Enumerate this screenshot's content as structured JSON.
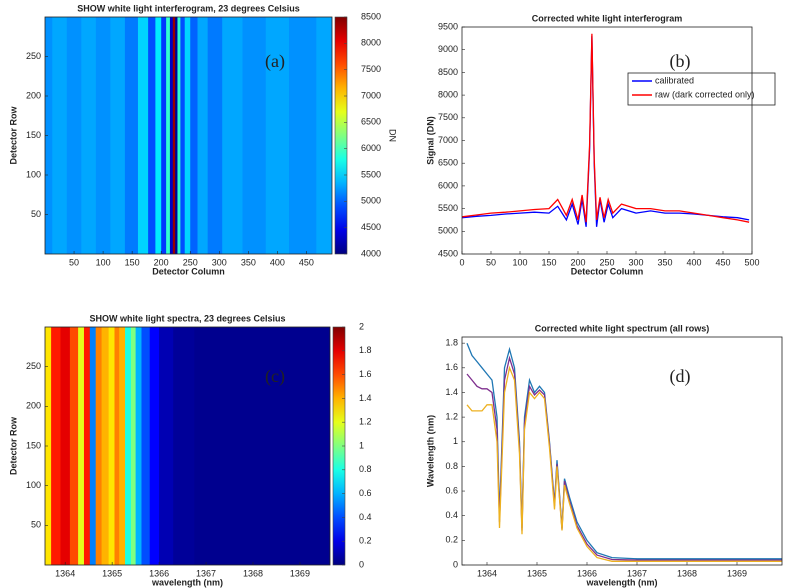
{
  "chart_data": [
    {
      "type": "heatmap",
      "title": "SHOW white light interferogram, 23 degrees Celsius",
      "xlabel": "Detector Column",
      "ylabel": "Detector Row",
      "annotation": "(a)",
      "x": [
        0,
        25,
        50,
        75,
        100,
        125,
        150,
        170,
        185,
        195,
        205,
        212,
        218,
        222,
        226,
        230,
        236,
        245,
        255,
        270,
        290,
        320,
        360,
        400,
        440,
        494
      ],
      "values": [
        5200,
        5300,
        5200,
        5300,
        5200,
        5300,
        5100,
        5500,
        4900,
        5600,
        4800,
        5900,
        4300,
        8400,
        4100,
        5900,
        4900,
        5500,
        5000,
        5300,
        5100,
        5300,
        5200,
        5300,
        5200,
        5300
      ],
      "xlim": [
        0,
        494
      ],
      "xticks": [
        50,
        100,
        150,
        200,
        250,
        300,
        350,
        400,
        450
      ],
      "ylim": [
        0,
        300
      ],
      "yticks": [
        50,
        100,
        150,
        200,
        250
      ],
      "clim": [
        4000,
        8500
      ],
      "cticks": [
        4000,
        4500,
        5000,
        5500,
        6000,
        6500,
        7000,
        7500,
        8000,
        8500
      ],
      "clabel": "DN",
      "colormap": "jet"
    },
    {
      "type": "line",
      "title": "Corrected white light interferogram",
      "xlabel": "Detector Column",
      "ylabel": "Signal (DN)",
      "annotation": "(b)",
      "x": [
        0,
        25,
        50,
        75,
        100,
        125,
        150,
        165,
        180,
        190,
        200,
        207,
        214,
        220,
        224,
        228,
        232,
        238,
        245,
        252,
        260,
        275,
        300,
        325,
        350,
        375,
        400,
        425,
        450,
        475,
        495
      ],
      "series": [
        {
          "name": "calibrated",
          "color": "#0000ff",
          "values": [
            5300,
            5330,
            5350,
            5380,
            5400,
            5420,
            5400,
            5550,
            5250,
            5600,
            5150,
            5700,
            5100,
            6800,
            9300,
            6500,
            5100,
            5700,
            5200,
            5600,
            5300,
            5500,
            5400,
            5450,
            5400,
            5400,
            5380,
            5350,
            5320,
            5300,
            5250
          ]
        },
        {
          "name": "raw (dark corrected only)",
          "color": "#ff0000",
          "values": [
            5320,
            5360,
            5400,
            5420,
            5450,
            5480,
            5500,
            5700,
            5350,
            5700,
            5250,
            5800,
            5200,
            6900,
            9350,
            6600,
            5250,
            5750,
            5300,
            5700,
            5400,
            5600,
            5500,
            5500,
            5450,
            5450,
            5400,
            5350,
            5300,
            5250,
            5200
          ]
        }
      ],
      "xlim": [
        0,
        500
      ],
      "xticks": [
        0,
        50,
        100,
        150,
        200,
        250,
        300,
        350,
        400,
        450,
        500
      ],
      "ylim": [
        4500,
        9500
      ],
      "yticks": [
        4500,
        5000,
        5500,
        6000,
        6500,
        7000,
        7500,
        8000,
        8500,
        9000,
        9500
      ],
      "legend": "upper right"
    },
    {
      "type": "heatmap",
      "title": "SHOW white light spectra, 23 degrees Celsius",
      "xlabel": "wavelength (nm)",
      "ylabel": "Detector Row",
      "annotation": "(c)",
      "x": [
        1363.6,
        1363.8,
        1364.0,
        1364.2,
        1364.35,
        1364.45,
        1364.6,
        1364.7,
        1364.85,
        1365.0,
        1365.1,
        1365.2,
        1365.35,
        1365.45,
        1365.55,
        1365.7,
        1365.9,
        1366.1,
        1366.5,
        1367,
        1368,
        1369.6
      ],
      "values": [
        1.3,
        1.7,
        1.8,
        1.6,
        1.2,
        1.7,
        0.5,
        1.5,
        1.4,
        1.3,
        1.5,
        1.4,
        0.8,
        1.0,
        0.6,
        0.4,
        0.25,
        0.1,
        0.05,
        0.03,
        0.03,
        0.03
      ],
      "xlim": [
        1363.57,
        1369.64
      ],
      "xticks": [
        1364,
        1365,
        1366,
        1367,
        1368,
        1369
      ],
      "ylim": [
        0,
        300
      ],
      "yticks": [
        50,
        100,
        150,
        200,
        250
      ],
      "clim": [
        0,
        2
      ],
      "cticks": [
        0,
        0.2,
        0.4,
        0.6,
        0.8,
        1,
        1.2,
        1.4,
        1.6,
        1.8,
        2
      ],
      "colormap": "jet"
    },
    {
      "type": "line",
      "title": "Corrected white light spectrum (all rows)",
      "xlabel": "wavelength (nm)",
      "ylabel": "Wavelength (nm)",
      "annotation": "(d)",
      "x": [
        1363.6,
        1363.7,
        1363.8,
        1363.9,
        1364.0,
        1364.1,
        1364.2,
        1364.25,
        1364.35,
        1364.45,
        1364.55,
        1364.65,
        1364.7,
        1364.75,
        1364.85,
        1364.95,
        1365.05,
        1365.15,
        1365.25,
        1365.35,
        1365.4,
        1365.5,
        1365.55,
        1365.65,
        1365.8,
        1366.0,
        1366.2,
        1366.5,
        1367,
        1368,
        1369,
        1369.9
      ],
      "series": [
        {
          "color": "#1f77b4",
          "values": [
            1.8,
            1.7,
            1.65,
            1.6,
            1.55,
            1.5,
            1.2,
            0.4,
            1.6,
            1.75,
            1.6,
            1.0,
            0.3,
            1.2,
            1.5,
            1.4,
            1.45,
            1.4,
            1.0,
            0.5,
            0.85,
            0.3,
            0.7,
            0.55,
            0.35,
            0.2,
            0.1,
            0.06,
            0.05,
            0.05,
            0.05,
            0.05
          ]
        },
        {
          "color": "#7e2f8e",
          "values": [
            1.55,
            1.5,
            1.45,
            1.43,
            1.43,
            1.4,
            1.1,
            0.35,
            1.5,
            1.68,
            1.55,
            0.95,
            0.28,
            1.15,
            1.45,
            1.38,
            1.42,
            1.38,
            0.98,
            0.48,
            0.82,
            0.29,
            0.68,
            0.52,
            0.32,
            0.17,
            0.08,
            0.045,
            0.04,
            0.04,
            0.04,
            0.04
          ]
        },
        {
          "color": "#edb120",
          "values": [
            1.3,
            1.25,
            1.25,
            1.25,
            1.3,
            1.3,
            1.0,
            0.3,
            1.4,
            1.6,
            1.5,
            0.9,
            0.25,
            1.1,
            1.4,
            1.35,
            1.4,
            1.35,
            0.95,
            0.45,
            0.8,
            0.28,
            0.65,
            0.5,
            0.3,
            0.15,
            0.06,
            0.03,
            0.03,
            0.03,
            0.03,
            0.03
          ]
        }
      ],
      "xlim": [
        1363.5,
        1369.9
      ],
      "xticks": [
        1364,
        1365,
        1366,
        1367,
        1368,
        1369
      ],
      "ylim": [
        0,
        1.85
      ],
      "yticks": [
        0,
        0.2,
        0.4,
        0.6,
        0.8,
        1,
        1.2,
        1.4,
        1.6,
        1.8
      ]
    }
  ]
}
